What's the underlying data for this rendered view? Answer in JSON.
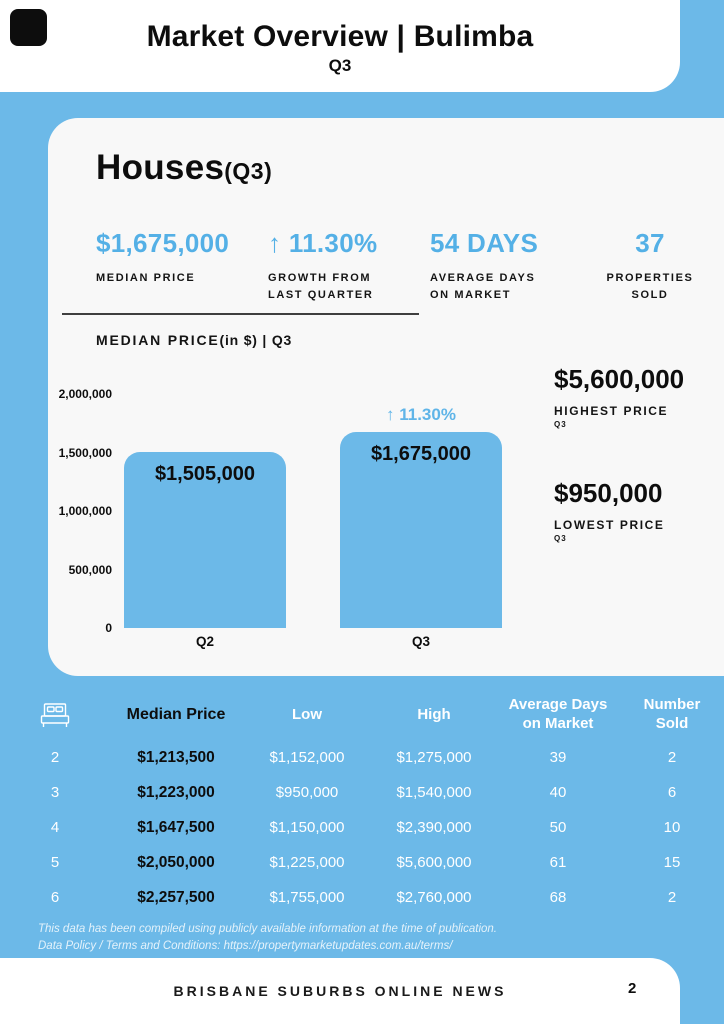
{
  "colors": {
    "background": "#6cb9e8",
    "card": "#f8f8f8",
    "accent_text": "#54b0e6",
    "bar": "#6cb9e8",
    "panel": "#ffffff",
    "text_dark": "#0d0d0d",
    "text_light": "#ffffff"
  },
  "header": {
    "title": "Market Overview | Bulimba",
    "subtitle": "Q3"
  },
  "houses": {
    "title": "Houses",
    "title_suffix": "(Q3)"
  },
  "stats": [
    {
      "value": "$1,675,000",
      "label": "MEDIAN PRICE"
    },
    {
      "value": "↑ 11.30%",
      "label": "GROWTH FROM LAST QUARTER"
    },
    {
      "value": "54 DAYS",
      "label": "AVERAGE DAYS ON MARKET"
    },
    {
      "value": "37",
      "label": "PROPERTIES SOLD"
    }
  ],
  "chart_data": {
    "type": "bar",
    "title": "MEDIAN PRICE",
    "title_suffix": "(in $) | Q3",
    "categories": [
      "Q2",
      "Q3"
    ],
    "values": [
      1505000,
      1675000
    ],
    "bar_labels": [
      "$1,505,000",
      "$1,675,000"
    ],
    "growth_annotation": "↑ 11.30%",
    "ylim": [
      0,
      2000000
    ],
    "ytick_values": [
      2000000,
      1500000,
      1000000,
      500000,
      0
    ],
    "yticks": [
      "2,000,000",
      "1,500,000",
      "1,000,000",
      "500,000",
      "0"
    ],
    "bar_color": "#6cb9e8",
    "grid": false,
    "legend": false
  },
  "callouts": {
    "highest": {
      "value": "$5,600,000",
      "label": "HIGHEST PRICE",
      "sub": "Q3"
    },
    "lowest": {
      "value": "$950,000",
      "label": "LOWEST PRICE",
      "sub": "Q3"
    }
  },
  "table": {
    "bed_icon": "bed-icon",
    "headers": {
      "median": "Median Price",
      "low": "Low",
      "high": "High",
      "days": "Average Days\non Market",
      "sold": "Number\nSold"
    },
    "rows": [
      [
        "2",
        "$1,213,500",
        "$1,152,000",
        "$1,275,000",
        "39",
        "2"
      ],
      [
        "3",
        "$1,223,000",
        "$950,000",
        "$1,540,000",
        "40",
        "6"
      ],
      [
        "4",
        "$1,647,500",
        "$1,150,000",
        "$2,390,000",
        "50",
        "10"
      ],
      [
        "5",
        "$2,050,000",
        "$1,225,000",
        "$5,600,000",
        "61",
        "15"
      ],
      [
        "6",
        "$2,257,500",
        "$1,755,000",
        "$2,760,000",
        "68",
        "2"
      ]
    ]
  },
  "disclaimer": {
    "line1": "This data has been compiled using publicly available information at the time of publication.",
    "line2": "Data Policy / Terms and Conditions: https://propertymarketupdates.com.au/terms/"
  },
  "footer": {
    "text": "BRISBANE SUBURBS ONLINE NEWS",
    "page": "2"
  }
}
